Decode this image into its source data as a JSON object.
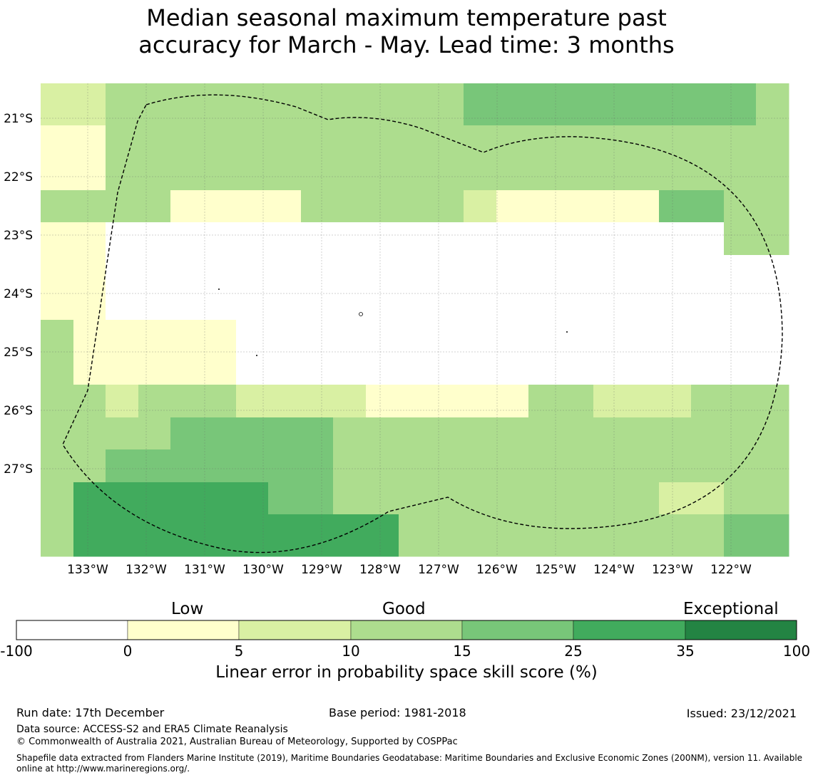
{
  "title_line1": "Median seasonal maximum temperature past",
  "title_line2": "accuracy for March - May. Lead time: 3 months",
  "map": {
    "lon_ticks": [
      "133°W",
      "132°W",
      "131°W",
      "130°W",
      "129°W",
      "128°W",
      "127°W",
      "126°W",
      "125°W",
      "124°W",
      "123°W",
      "122°W"
    ],
    "lat_ticks": [
      "21°S",
      "22°S",
      "23°S",
      "24°S",
      "25°S",
      "26°S",
      "27°S"
    ],
    "grid_columns": 23,
    "grid_rows": 14,
    "cell_classes": [
      "22333333333334444444443",
      "11333333333333333333333",
      "11333333333333333333333",
      "33331111333332111114433",
      "11000000000000000000033",
      "11000000000000000000000",
      "11000000000000000000000",
      "31111100000000000000000",
      "31111100000000000000000",
      "33233322221111133222333",
      "33334444433333333333333",
      "33444444433333333333333",
      "35555554433333333332233",
      "35555555555333333333344"
    ],
    "colors": {
      "c0": "#ffffff",
      "c1": "#ffffcc",
      "c2": "#d9f0a3",
      "c3": "#addd8e",
      "c4": "#78c679",
      "c5": "#41ab5d",
      "c6": "#238443"
    }
  },
  "colorbar": {
    "categories": [
      "Low",
      "Good",
      "Exceptional"
    ],
    "ticks": [
      "-100",
      "0",
      "5",
      "10",
      "15",
      "25",
      "35",
      "100"
    ],
    "colors": [
      "#ffffff",
      "#ffffcc",
      "#d9f0a3",
      "#addd8e",
      "#78c679",
      "#41ab5d",
      "#238443"
    ],
    "label": "Linear error in probability space skill score (%)"
  },
  "footer": {
    "run_date": "Run date: 17th December",
    "base_period": "Base period: 1981-2018",
    "issued": "Issued: 23/12/2021",
    "data_source": "Data source: ACCESS-S2 and ERA5 Climate Reanalysis",
    "copyright": "© Commonwealth of Australia 2021, Australian Bureau of Meteorology, Supported by COSPPac",
    "shapefile": "Shapefile data extracted from Flanders Marine Institute (2019), Maritime Boundaries Geodatabase: Maritime Boundaries and Exclusive Economic Zones (200NM), version 11. Available online at http://www.marineregions.org/."
  }
}
